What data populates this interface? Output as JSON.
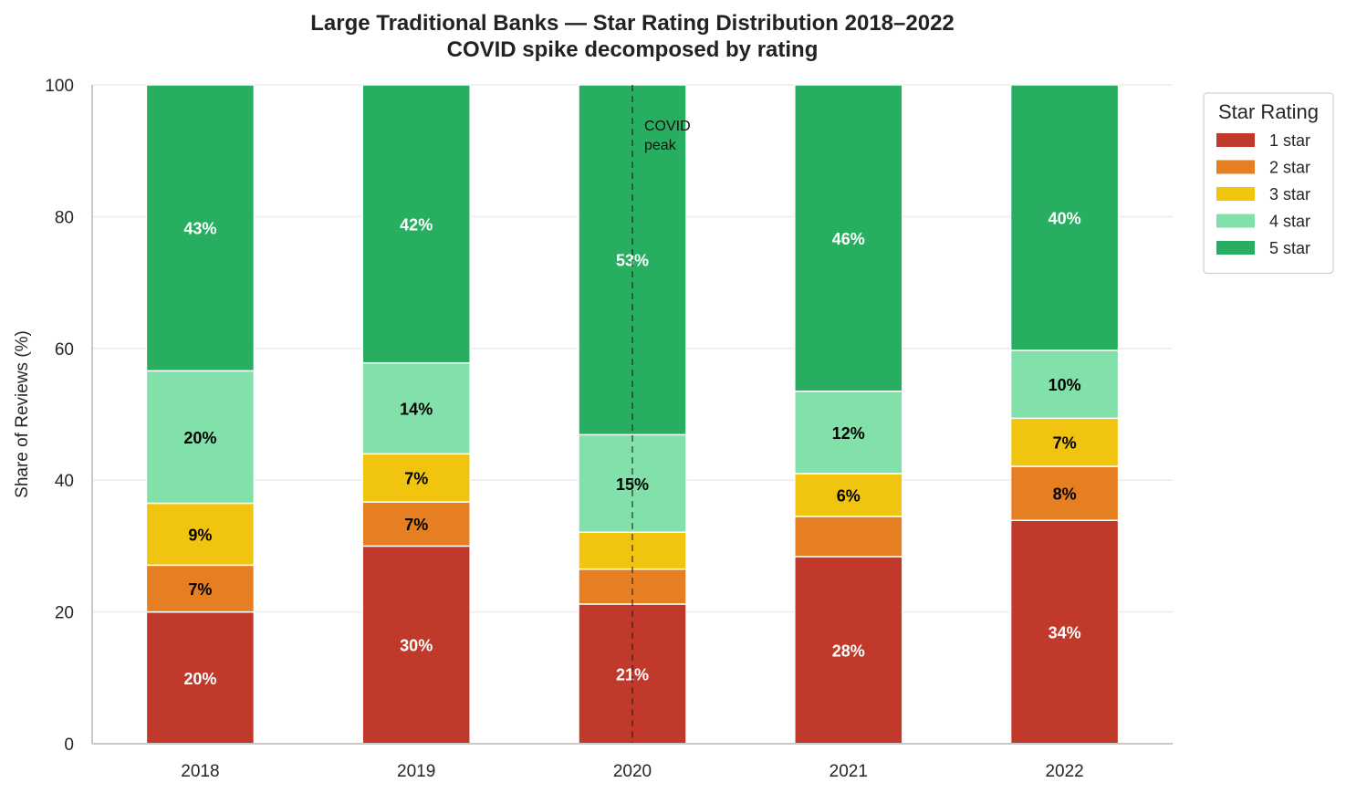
{
  "chart_data": {
    "type": "bar",
    "stacked": true,
    "title": "Large Traditional Banks — Star Rating Distribution 2018–2022",
    "subtitle": "COVID spike decomposed by rating",
    "xlabel": "",
    "ylabel": "Share of Reviews (%)",
    "ylim": [
      0,
      100
    ],
    "yticks": [
      0,
      20,
      40,
      60,
      80,
      100
    ],
    "grid": true,
    "categories": [
      "2018",
      "2019",
      "2020",
      "2021",
      "2022"
    ],
    "series": [
      {
        "name": "1 star",
        "color": "#c0392b",
        "values": [
          20,
          30,
          21.2,
          28.4,
          33.9
        ],
        "labels": [
          "20%",
          "30%",
          "21%",
          "28%",
          "34%"
        ],
        "label_color": "#ffffff"
      },
      {
        "name": "2 star",
        "color": "#e67e22",
        "values": [
          7.1,
          6.7,
          5.3,
          6.1,
          8.2
        ],
        "labels": [
          "7%",
          "7%",
          "",
          "",
          "8%"
        ],
        "label_color": "#000000"
      },
      {
        "name": "3 star",
        "color": "#f1c40f",
        "values": [
          9.4,
          7.3,
          5.6,
          6.5,
          7.3
        ],
        "labels": [
          "9%",
          "7%",
          "",
          "6%",
          "7%"
        ],
        "label_color": "#000000"
      },
      {
        "name": "4 star",
        "color": "#82e0aa",
        "values": [
          20.1,
          13.8,
          14.8,
          12.5,
          10.3
        ],
        "labels": [
          "20%",
          "14%",
          "15%",
          "12%",
          "10%"
        ],
        "label_color": "#000000"
      },
      {
        "name": "5 star",
        "color": "#27ae60",
        "values": [
          43.4,
          42.2,
          53.1,
          46.5,
          40.3
        ],
        "labels": [
          "43%",
          "42%",
          "53%",
          "46%",
          "40%"
        ],
        "label_color": "#ffffff"
      }
    ],
    "legend": {
      "title": "Star Rating",
      "position": "outside-right-top"
    },
    "annotation": {
      "text_lines": [
        "COVID",
        "peak"
      ],
      "category": "2020",
      "style": "dashed-vertical-line"
    }
  }
}
